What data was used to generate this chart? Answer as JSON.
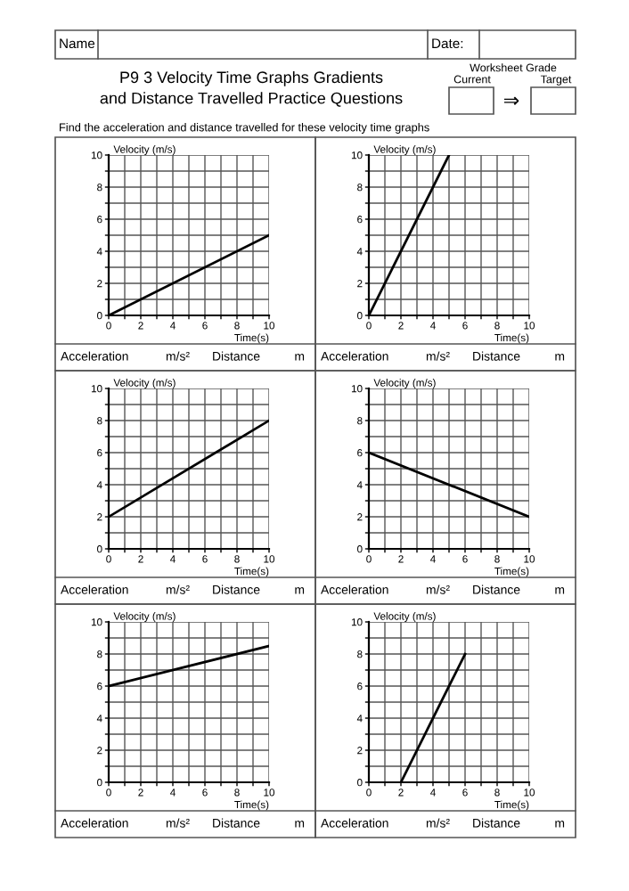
{
  "chart_data": [
    {
      "type": "other",
      "title": "P9 3 Velocity Time Graphs Gradients\nand Distance Travelled Practice Questions",
      "subtitle": "Find the acceleration and distance travelled for these velocity time graphs",
      "annotations": [
        "Name",
        "Date:",
        "Worksheet Grade",
        "Current",
        "Target",
        "⇒"
      ]
    },
    {
      "type": "line",
      "x": [
        0,
        10
      ],
      "values": [
        0,
        5
      ],
      "color": "#000000",
      "xlabel": "Time(s)",
      "ylabel": "Velocity (m/s)",
      "xlim": [
        0,
        10
      ],
      "ylim": [
        0,
        10
      ],
      "xticks": [
        0,
        {
          "value": 1,
          "label": null
        },
        2,
        {
          "value": 3,
          "label": null
        },
        4,
        {
          "value": 5,
          "label": null
        },
        6,
        {
          "value": 7,
          "label": null
        },
        8,
        {
          "value": 9,
          "label": null
        },
        10
      ],
      "yticks": [
        0,
        {
          "value": 1,
          "label": null
        },
        2,
        {
          "value": 3,
          "label": null
        },
        4,
        {
          "value": 5,
          "label": null
        },
        6,
        {
          "value": 7,
          "label": null
        },
        8,
        {
          "value": 9,
          "label": null
        },
        10
      ],
      "grid": true,
      "annotations": [
        "Acceleration",
        "m/s²",
        "Distance",
        "m"
      ]
    },
    {
      "type": "line",
      "x": [
        0,
        5
      ],
      "values": [
        0,
        10
      ],
      "color": "#000000",
      "xlabel": "Time(s)",
      "ylabel": "Velocity (m/s)",
      "xlim": [
        0,
        10
      ],
      "ylim": [
        0,
        10
      ],
      "xticks": [
        0,
        {
          "value": 1,
          "label": null
        },
        2,
        {
          "value": 3,
          "label": null
        },
        4,
        {
          "value": 5,
          "label": null
        },
        6,
        {
          "value": 7,
          "label": null
        },
        8,
        {
          "value": 9,
          "label": null
        },
        10
      ],
      "yticks": [
        0,
        {
          "value": 1,
          "label": null
        },
        2,
        {
          "value": 3,
          "label": null
        },
        4,
        {
          "value": 5,
          "label": null
        },
        6,
        {
          "value": 7,
          "label": null
        },
        8,
        {
          "value": 9,
          "label": null
        },
        10
      ],
      "grid": true,
      "annotations": [
        "Acceleration",
        "m/s²",
        "Distance",
        "m"
      ]
    },
    {
      "type": "line",
      "x": [
        0,
        10
      ],
      "values": [
        2,
        8
      ],
      "color": "#000000",
      "xlabel": "Time(s)",
      "ylabel": "Velocity (m/s)",
      "xlim": [
        0,
        10
      ],
      "ylim": [
        0,
        10
      ],
      "xticks": [
        0,
        {
          "value": 1,
          "label": null
        },
        2,
        {
          "value": 3,
          "label": null
        },
        4,
        {
          "value": 5,
          "label": null
        },
        6,
        {
          "value": 7,
          "label": null
        },
        8,
        {
          "value": 9,
          "label": null
        },
        10
      ],
      "yticks": [
        0,
        {
          "value": 1,
          "label": null
        },
        2,
        {
          "value": 3,
          "label": null
        },
        4,
        {
          "value": 5,
          "label": null
        },
        6,
        {
          "value": 7,
          "label": null
        },
        8,
        {
          "value": 9,
          "label": null
        },
        10
      ],
      "grid": true,
      "annotations": [
        "Acceleration",
        "m/s²",
        "Distance",
        "m"
      ]
    },
    {
      "type": "line",
      "x": [
        0,
        10
      ],
      "values": [
        6,
        2
      ],
      "color": "#000000",
      "xlabel": "Time(s)",
      "ylabel": "Velocity (m/s)",
      "xlim": [
        0,
        10
      ],
      "ylim": [
        0,
        10
      ],
      "xticks": [
        0,
        {
          "value": 1,
          "label": null
        },
        2,
        {
          "value": 3,
          "label": null
        },
        4,
        {
          "value": 5,
          "label": null
        },
        6,
        {
          "value": 7,
          "label": null
        },
        8,
        {
          "value": 9,
          "label": null
        },
        10
      ],
      "yticks": [
        0,
        {
          "value": 1,
          "label": null
        },
        2,
        {
          "value": 3,
          "label": null
        },
        4,
        {
          "value": 5,
          "label": null
        },
        6,
        {
          "value": 7,
          "label": null
        },
        8,
        {
          "value": 9,
          "label": null
        },
        10
      ],
      "grid": true,
      "annotations": [
        "Acceleration",
        "m/s²",
        "Distance",
        "m"
      ]
    },
    {
      "type": "line",
      "x": [
        0,
        10
      ],
      "values": [
        6,
        8.5
      ],
      "color": "#000000",
      "xlabel": "Time(s)",
      "ylabel": "Velocity (m/s)",
      "xlim": [
        0,
        10
      ],
      "ylim": [
        0,
        10
      ],
      "xticks": [
        0,
        {
          "value": 1,
          "label": null
        },
        2,
        {
          "value": 3,
          "label": null
        },
        4,
        {
          "value": 5,
          "label": null
        },
        6,
        {
          "value": 7,
          "label": null
        },
        8,
        {
          "value": 9,
          "label": null
        },
        10
      ],
      "yticks": [
        0,
        {
          "value": 1,
          "label": null
        },
        2,
        {
          "value": 3,
          "label": null
        },
        4,
        {
          "value": 5,
          "label": null
        },
        6,
        {
          "value": 7,
          "label": null
        },
        8,
        {
          "value": 9,
          "label": null
        },
        10
      ],
      "grid": true,
      "annotations": [
        "Acceleration",
        "m/s²",
        "Distance",
        "m"
      ]
    },
    {
      "type": "line",
      "x": [
        2,
        6
      ],
      "values": [
        0,
        8
      ],
      "color": "#000000",
      "xlabel": "Time(s)",
      "ylabel": "Velocity (m/s)",
      "xlim": [
        0,
        10
      ],
      "ylim": [
        0,
        10
      ],
      "xticks": [
        0,
        {
          "value": 1,
          "label": null
        },
        2,
        {
          "value": 3,
          "label": null
        },
        4,
        {
          "value": 5,
          "label": null
        },
        6,
        {
          "value": 7,
          "label": null
        },
        8,
        {
          "value": 9,
          "label": null
        },
        10
      ],
      "yticks": [
        0,
        {
          "value": 1,
          "label": null
        },
        2,
        {
          "value": 3,
          "label": null
        },
        4,
        {
          "value": 5,
          "label": null
        },
        6,
        {
          "value": 7,
          "label": null
        },
        8,
        {
          "value": 9,
          "label": null
        },
        10
      ],
      "grid": true,
      "annotations": [
        "Acceleration",
        "m/s²",
        "Distance",
        "m"
      ]
    }
  ]
}
